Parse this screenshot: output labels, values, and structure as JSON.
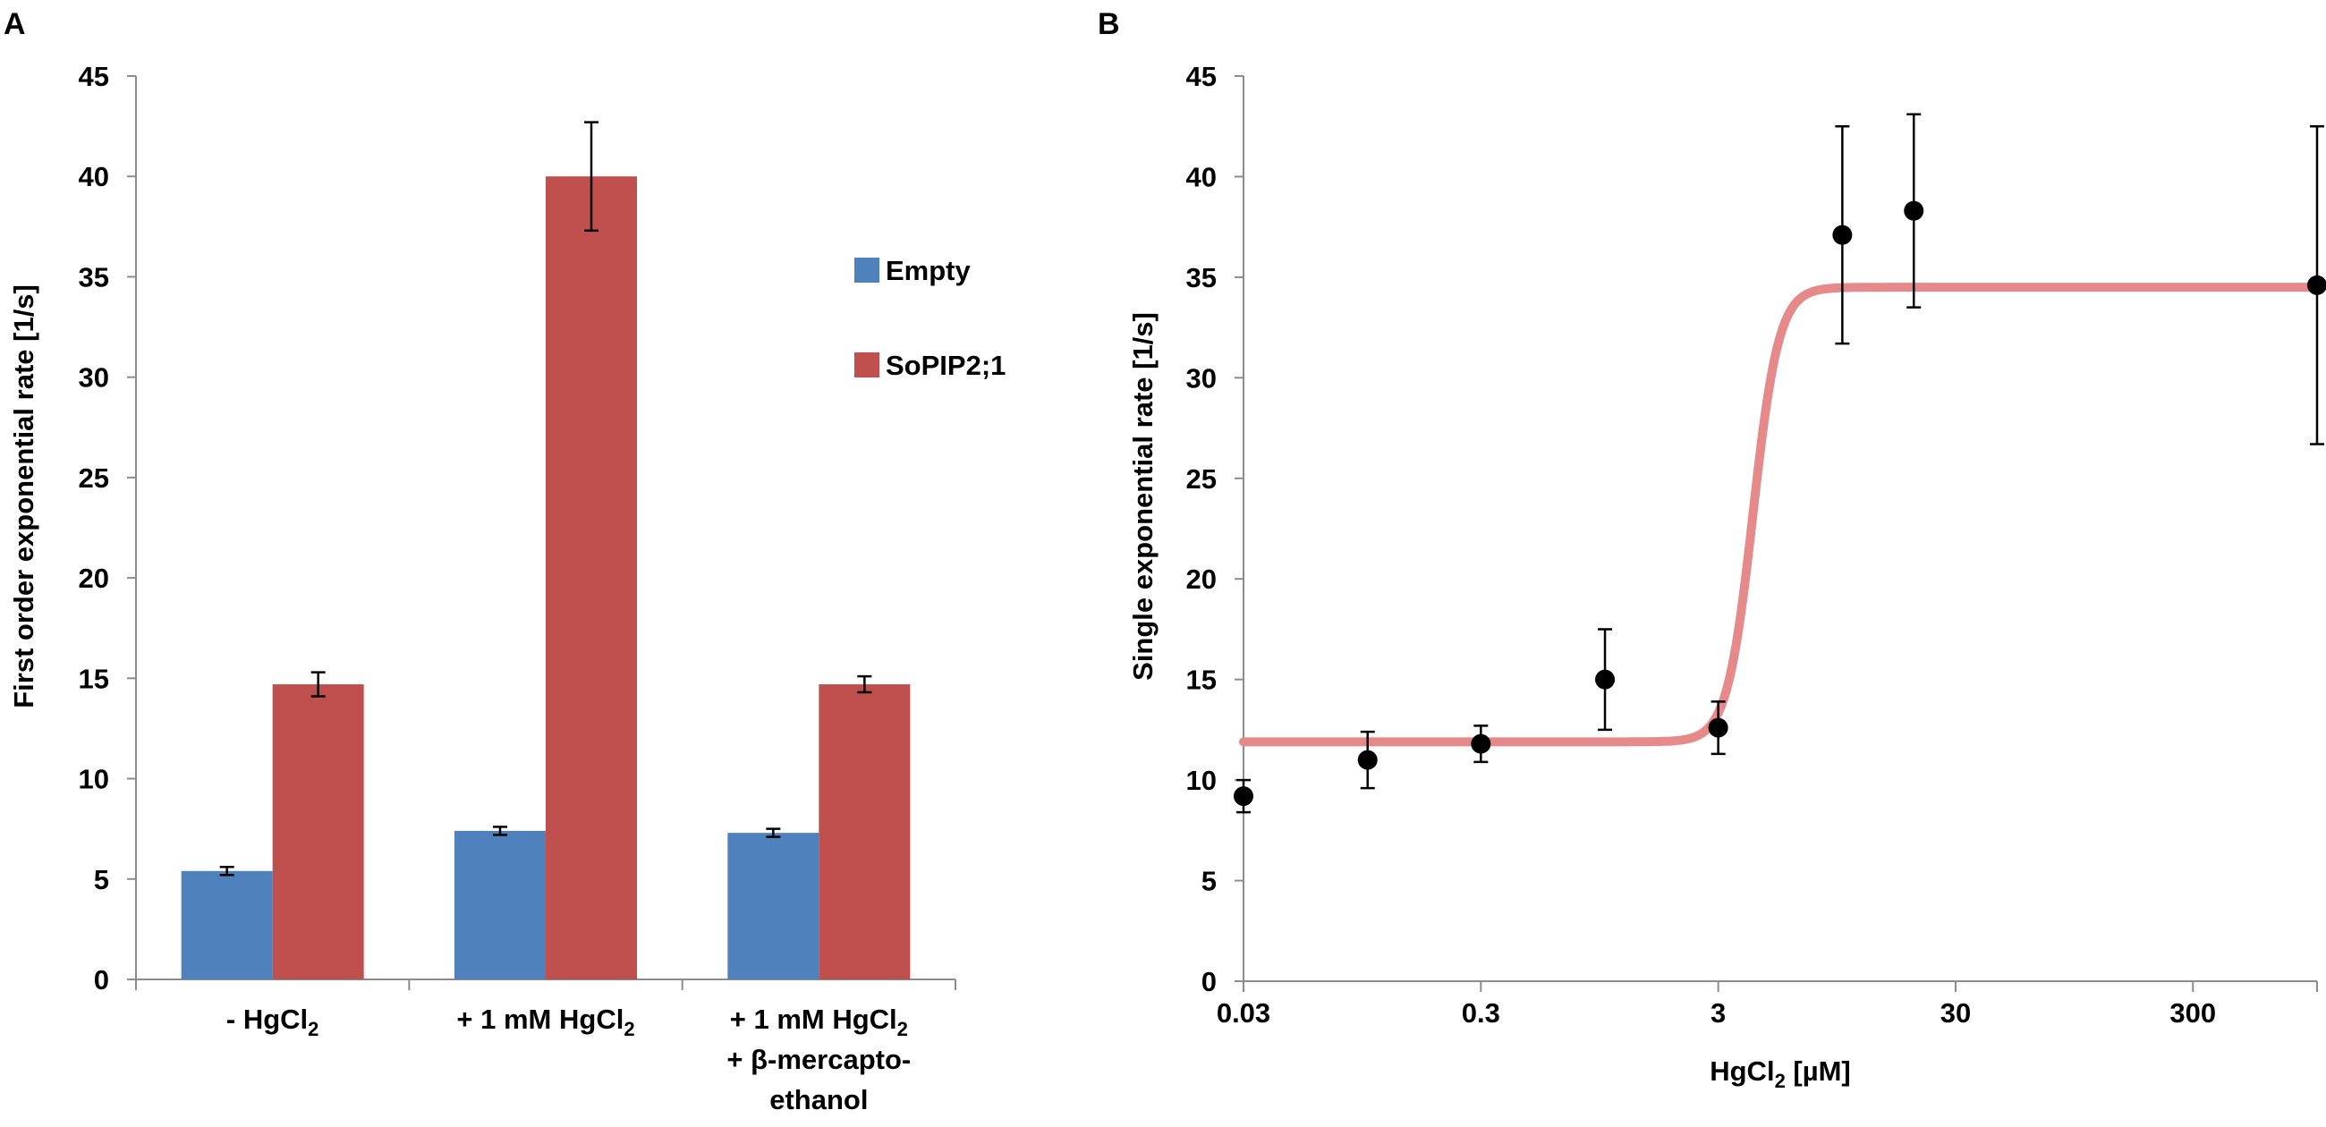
{
  "figure": {
    "panels": [
      "A",
      "B"
    ]
  },
  "chart_data": [
    {
      "panel": "A",
      "type": "bar",
      "ylabel": "First order exponential rate [1/s]",
      "xlabel": "",
      "ylim": [
        0,
        45
      ],
      "yticks": [
        0,
        5,
        10,
        15,
        20,
        25,
        30,
        35,
        40,
        45
      ],
      "categories": [
        {
          "lines": [
            {
              "text": "- HgCl",
              "sub": "2"
            }
          ]
        },
        {
          "lines": [
            {
              "text": "+ 1 mM HgCl",
              "sub": "2"
            }
          ]
        },
        {
          "lines": [
            {
              "text": "+ 1 mM HgCl",
              "sub": "2"
            },
            {
              "text": "+ β-mercapto-"
            },
            {
              "text": "ethanol"
            }
          ]
        }
      ],
      "series": [
        {
          "name": "Empty",
          "color": "#4f81bd",
          "values": [
            5.4,
            7.4,
            7.3
          ],
          "errors": [
            0.2,
            0.2,
            0.2
          ]
        },
        {
          "name": "SoPIP2;1",
          "color": "#c0504d",
          "values": [
            14.7,
            40.0,
            14.7
          ],
          "errors": [
            0.6,
            2.7,
            0.4
          ]
        }
      ],
      "legend_position": "right"
    },
    {
      "panel": "B",
      "type": "scatter",
      "xscale": "log",
      "xlabel": {
        "text": "HgCl",
        "sub": "2",
        "suffix": " [µM]"
      },
      "ylabel": "Single exponential rate [1/s]",
      "ylim": [
        0,
        45
      ],
      "yticks": [
        0,
        5,
        10,
        15,
        20,
        25,
        30,
        35,
        40,
        45
      ],
      "xlim": [
        0.03,
        1000
      ],
      "xticks": [
        0.03,
        0.3,
        3,
        30,
        300
      ],
      "xticklabels": [
        "0.03",
        "0.3",
        "3",
        "30",
        "300"
      ],
      "points": [
        {
          "x": 0.03,
          "y": 9.2,
          "err": 0.8
        },
        {
          "x": 0.1,
          "y": 11.0,
          "err": 1.4
        },
        {
          "x": 0.3,
          "y": 11.8,
          "err": 0.9
        },
        {
          "x": 1.0,
          "y": 15.0,
          "err": 2.5
        },
        {
          "x": 3.0,
          "y": 12.6,
          "err": 1.3
        },
        {
          "x": 10.0,
          "y": 37.1,
          "err": 5.4
        },
        {
          "x": 20.0,
          "y": 38.3,
          "err": 4.8
        },
        {
          "x": 1000.0,
          "y": 34.6,
          "err": 7.9
        }
      ],
      "fit": {
        "type": "sigmoid",
        "bottom": 11.9,
        "top": 34.5,
        "ec50": 4.2,
        "hill": 8,
        "color": "#e6898a"
      }
    }
  ]
}
